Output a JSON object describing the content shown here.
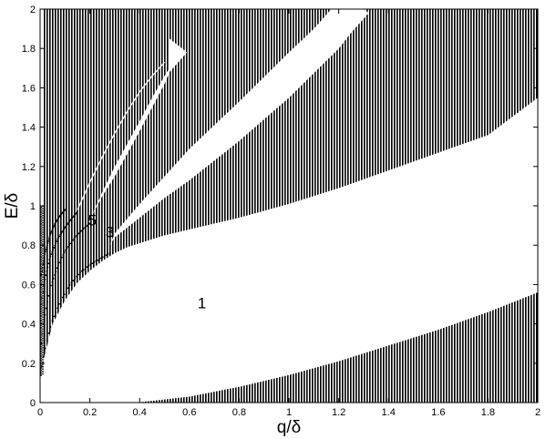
{
  "chart_data": {
    "type": "area",
    "xlabel": "q/δ",
    "ylabel": "E/δ",
    "xlim": [
      0,
      2
    ],
    "ylim": [
      0,
      2
    ],
    "xticks": [
      "0",
      "0.2",
      "0.4",
      "0.6",
      "0.8",
      "1",
      "1.2",
      "1.4",
      "1.6",
      "1.8",
      "2"
    ],
    "yticks": [
      "0",
      "0.2",
      "0.4",
      "0.6",
      "0.8",
      "1",
      "1.2",
      "1.4",
      "1.6",
      "1.8",
      "2"
    ],
    "grid": false,
    "fill_color": "#000000",
    "region_labels": [
      {
        "text": "1",
        "x": 0.65,
        "y": 0.48
      },
      {
        "text": "3",
        "x": 0.28,
        "y": 0.84
      },
      {
        "text": "5",
        "x": 0.21,
        "y": 0.9
      }
    ],
    "series": [
      {
        "role": "lower-band-upper-edge",
        "x": [
          0,
          0.3,
          0.4,
          0.6,
          0.8,
          1.0,
          1.2,
          1.4,
          1.6,
          1.8,
          2.0
        ],
        "y": [
          0,
          0,
          0.002,
          0.03,
          0.08,
          0.14,
          0.21,
          0.29,
          0.37,
          0.46,
          0.56
        ]
      },
      {
        "role": "band-1-upper-edge",
        "x": [
          0.01,
          0.05,
          0.1,
          0.15,
          0.2,
          0.25,
          0.3,
          0.35,
          0.4,
          0.5,
          0.6,
          0.8,
          1.0,
          1.2,
          1.4,
          1.6,
          1.8,
          2.0
        ],
        "y": [
          0.2,
          0.4,
          0.52,
          0.61,
          0.67,
          0.72,
          0.76,
          0.79,
          0.81,
          0.85,
          0.88,
          0.94,
          1.01,
          1.09,
          1.18,
          1.27,
          1.36,
          1.55
        ]
      },
      {
        "role": "band-2-lower-edge",
        "x": [
          0.28,
          0.3,
          0.4,
          0.5,
          0.6,
          0.8,
          1.0,
          1.2,
          1.25
        ],
        "y": [
          0.8,
          0.84,
          0.94,
          1.04,
          1.13,
          1.33,
          1.55,
          1.8,
          1.88
        ]
      },
      {
        "role": "band-2-upper-edge",
        "x": [
          0.28,
          0.3,
          0.4,
          0.5,
          0.6,
          0.8,
          1.0,
          1.1,
          1.17
        ],
        "y": [
          0.8,
          0.86,
          1.01,
          1.15,
          1.29,
          1.53,
          1.78,
          1.9,
          2.0
        ]
      },
      {
        "role": "band-3-lower-edge",
        "x": [
          0.2,
          0.25,
          0.3,
          0.4,
          0.45,
          0.5,
          0.52
        ],
        "y": [
          0.93,
          1.05,
          1.15,
          1.38,
          1.5,
          1.62,
          1.68
        ]
      },
      {
        "role": "band-3-upper-edge",
        "x": [
          0.2,
          0.25,
          0.3,
          0.4,
          0.45,
          0.5,
          0.52
        ],
        "y": [
          0.93,
          1.07,
          1.2,
          1.43,
          1.55,
          1.66,
          1.7
        ]
      },
      {
        "role": "band-4-edge",
        "x": [
          0.15,
          0.2,
          0.25,
          0.3,
          0.35,
          0.4,
          0.45,
          0.5
        ],
        "y": [
          0.98,
          1.12,
          1.25,
          1.37,
          1.48,
          1.58,
          1.66,
          1.73
        ]
      },
      {
        "role": "dotted-lines-below",
        "x": [
          0,
          0.005,
          0.015,
          0.03,
          0.05,
          0.08,
          0.12,
          0.16,
          0.2,
          0.24,
          0.28
        ],
        "y": [
          0.14,
          0.17,
          0.24,
          0.33,
          0.42,
          0.51,
          0.6,
          0.66,
          0.7,
          0.73,
          0.76
        ]
      },
      {
        "role": "dotted-lines-below",
        "x": [
          0.005,
          0.02,
          0.04,
          0.07,
          0.1,
          0.14,
          0.18,
          0.2
        ],
        "y": [
          0.3,
          0.45,
          0.58,
          0.69,
          0.77,
          0.84,
          0.89,
          0.91
        ]
      },
      {
        "role": "dotted-lines-below",
        "x": [
          0.005,
          0.02,
          0.04,
          0.07,
          0.1,
          0.13,
          0.15
        ],
        "y": [
          0.5,
          0.63,
          0.74,
          0.83,
          0.89,
          0.94,
          0.97
        ]
      },
      {
        "role": "dotted-lines-below",
        "x": [
          0.005,
          0.02,
          0.04,
          0.06,
          0.08,
          0.1
        ],
        "y": [
          0.65,
          0.76,
          0.85,
          0.91,
          0.95,
          0.98
        ]
      }
    ]
  }
}
